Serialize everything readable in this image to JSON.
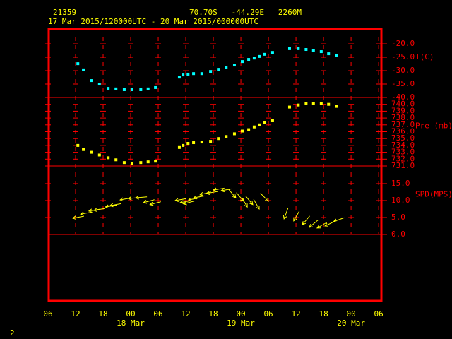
{
  "header": {
    "station": "21359",
    "location": "70.70S   -44.29E   2260M",
    "period": "17 Mar 2015/120000UTC - 20 Mar 2015/000000UTC"
  },
  "page_number": "2",
  "chart_data": [
    {
      "type": "scatter",
      "ylabel": "T(C)",
      "color": "#00ffff",
      "x": [
        6.5,
        7.7,
        9.5,
        11.2,
        13.1,
        14.8,
        16.6,
        18.3,
        20.2,
        21.8,
        23.4,
        28.6,
        29.4,
        30.5,
        31.7,
        33.5,
        35.4,
        37.1,
        38.8,
        40.6,
        42.3,
        43.7,
        44.9,
        46.0,
        47.2,
        48.9,
        52.6,
        54.5,
        56.2,
        57.8,
        59.5,
        61.1,
        62.8
      ],
      "values": [
        -27.4,
        -29.7,
        -33.7,
        -35.0,
        -36.6,
        -36.8,
        -37.1,
        -37.1,
        -37.1,
        -36.8,
        -36.3,
        -32.4,
        -31.6,
        -31.3,
        -31.1,
        -31.1,
        -30.3,
        -29.5,
        -28.9,
        -27.9,
        -26.6,
        -25.8,
        -25.3,
        -24.7,
        -23.9,
        -23.2,
        -21.8,
        -21.8,
        -22.1,
        -22.4,
        -22.9,
        -23.7,
        -24.2
      ],
      "xlim": [
        0,
        72.6
      ],
      "ylim": [
        -40,
        -14.2
      ],
      "yticks": [
        {
          "value": -20,
          "label": "-20.0"
        },
        {
          "value": -25,
          "label": "-25.0"
        },
        {
          "value": -30,
          "label": "-30.0"
        },
        {
          "value": -35,
          "label": "-35.0"
        },
        {
          "value": -40,
          "label": "-40.0"
        }
      ]
    },
    {
      "type": "scatter",
      "ylabel": "Pre (mb)",
      "color": "#ffff00",
      "x": [
        6.5,
        7.7,
        9.5,
        11.2,
        13.1,
        14.8,
        16.6,
        18.3,
        20.2,
        21.8,
        23.4,
        28.6,
        29.4,
        30.5,
        31.7,
        33.5,
        35.4,
        37.1,
        38.8,
        40.6,
        42.3,
        43.7,
        44.9,
        46.0,
        47.2,
        48.9,
        52.6,
        54.5,
        56.2,
        57.8,
        59.5,
        61.1,
        62.8
      ],
      "values": [
        734.0,
        733.4,
        733.0,
        732.6,
        732.2,
        731.9,
        731.5,
        731.4,
        731.5,
        731.6,
        731.7,
        733.7,
        734.0,
        734.3,
        734.4,
        734.5,
        734.6,
        735.0,
        735.3,
        735.7,
        736.1,
        736.3,
        736.7,
        737.0,
        737.3,
        737.6,
        739.6,
        739.9,
        740.1,
        740.1,
        740.1,
        740.0,
        739.7
      ],
      "xlim": [
        0,
        72.6
      ],
      "ylim": [
        731,
        741
      ],
      "yticks": [
        {
          "value": 740,
          "label": "740.0"
        },
        {
          "value": 739,
          "label": "739.0"
        },
        {
          "value": 738,
          "label": "738.0"
        },
        {
          "value": 737,
          "label": "737.0"
        },
        {
          "value": 736,
          "label": "736.0"
        },
        {
          "value": 735,
          "label": "735.0"
        },
        {
          "value": 734,
          "label": "734.0"
        },
        {
          "value": 733,
          "label": "733.0"
        },
        {
          "value": 732,
          "label": "732.0"
        },
        {
          "value": 731,
          "label": "731.0"
        }
      ]
    },
    {
      "type": "barb",
      "ylabel": "SPD(MPS)",
      "color": "#ffff00",
      "x": [
        5.4,
        7.1,
        8.9,
        10.0,
        12.5,
        13.5,
        15.7,
        17.5,
        19.1,
        20.8,
        22.2,
        27.7,
        28.8,
        29.5,
        30.6,
        31.7,
        33.1,
        34.5,
        36.0,
        37.7,
        40.9,
        42.6,
        43.4,
        44.6,
        46.0,
        48.0,
        51.4,
        53.5,
        55.4,
        56.9,
        58.6,
        60.3,
        62.2
      ],
      "values": [
        4.8,
        6.0,
        6.9,
        7.1,
        8.1,
        8.5,
        10.2,
        10.6,
        10.8,
        9.4,
        8.8,
        10.0,
        9.4,
        9.0,
        10.2,
        10.8,
        11.7,
        12.1,
        13.1,
        12.9,
        10.8,
        9.8,
        8.1,
        8.8,
        7.5,
        9.8,
        4.6,
        4.0,
        2.9,
        2.1,
        1.9,
        2.5,
        3.8
      ],
      "directions": [
        80,
        80,
        80,
        80,
        80,
        80,
        80,
        85,
        85,
        75,
        75,
        80,
        80,
        75,
        80,
        80,
        75,
        80,
        80,
        80,
        320,
        320,
        330,
        320,
        330,
        315,
        20,
        30,
        40,
        50,
        60,
        65,
        70
      ],
      "xlim": [
        0,
        72.6
      ],
      "ylim": [
        0,
        20.2
      ],
      "yticks": [
        {
          "value": 15,
          "label": "15.0"
        },
        {
          "value": 10,
          "label": "10.0"
        },
        {
          "value": 5,
          "label": "5.0"
        },
        {
          "value": 0,
          "label": "0.0"
        }
      ],
      "xticks": [
        {
          "value": 0,
          "label": "06"
        },
        {
          "value": 6,
          "label": "12"
        },
        {
          "value": 12,
          "label": "18"
        },
        {
          "value": 18,
          "label": "00"
        },
        {
          "value": 24,
          "label": "06"
        },
        {
          "value": 30,
          "label": "12"
        },
        {
          "value": 36,
          "label": "18"
        },
        {
          "value": 42,
          "label": "00"
        },
        {
          "value": 48,
          "label": "06"
        },
        {
          "value": 54,
          "label": "12"
        },
        {
          "value": 60,
          "label": "18"
        },
        {
          "value": 66,
          "label": "00"
        },
        {
          "value": 72,
          "label": "06"
        }
      ],
      "date_labels": [
        {
          "value": 18,
          "label": "18 Mar"
        },
        {
          "value": 42,
          "label": "19 Mar"
        },
        {
          "value": 66,
          "label": "20 Mar"
        }
      ]
    }
  ]
}
